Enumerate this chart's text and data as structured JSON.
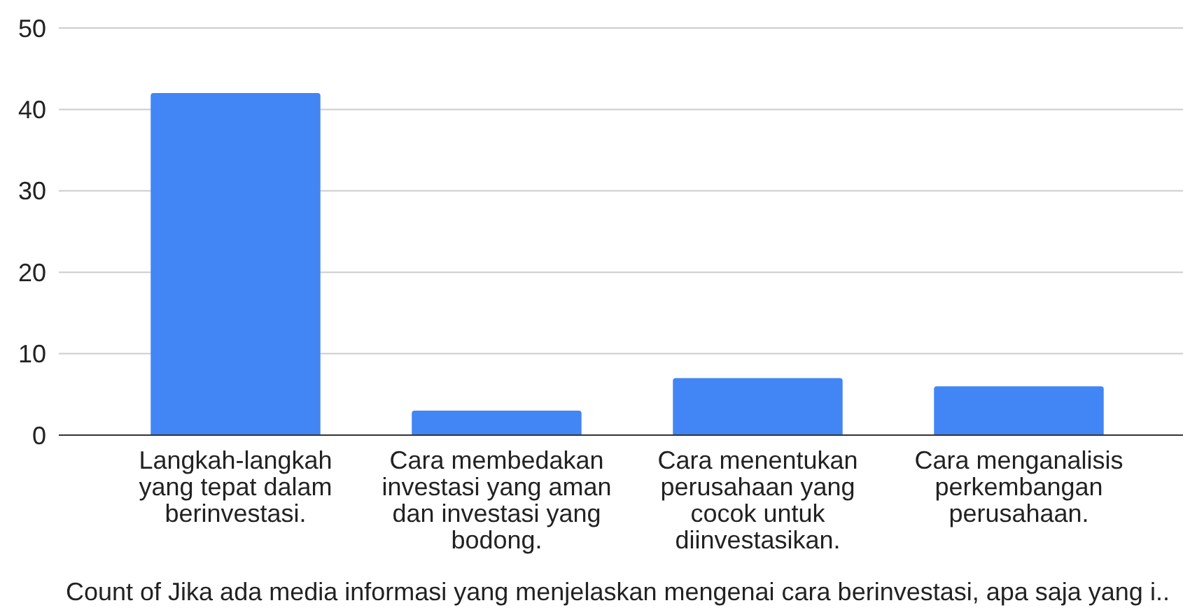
{
  "chart_data": {
    "type": "bar",
    "categories": [
      "Langkah-langkah yang tepat dalam berinvestasi.",
      "Cara membedakan investasi yang aman dan investasi yang bodong.",
      "Cara menentukan perusahaan yang cocok untuk diinvestasikan.",
      "Cara menganalisis perkembangan perusahaan."
    ],
    "values": [
      42,
      3,
      7,
      6
    ],
    "color": "#4285f4",
    "xlabel": "Count of Jika ada media informasi yang menjelaskan mengenai cara berinvestasi, apa saja yang i..",
    "ylim": [
      0,
      50
    ],
    "yticks": [
      0,
      10,
      20,
      30,
      40,
      50
    ],
    "grid": "y"
  }
}
